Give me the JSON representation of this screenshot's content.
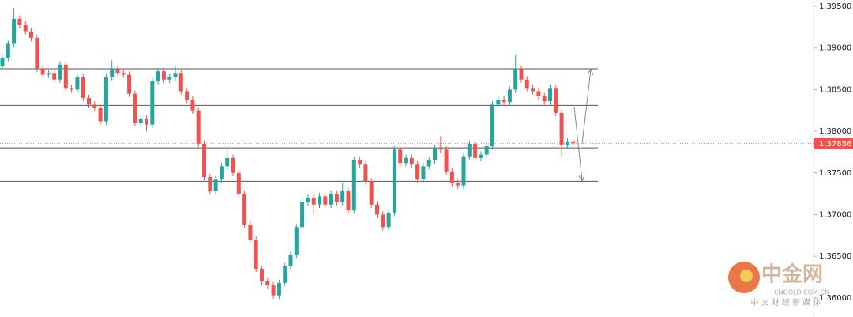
{
  "chart_data": {
    "type": "candlestick",
    "up_color": "#26a69a",
    "down_color": "#ef5350",
    "ylim": [
      1.35771,
      1.39576
    ],
    "yticks": [
      {
        "value": 1.395,
        "label": "1.39500"
      },
      {
        "value": 1.39,
        "label": "1.39000"
      },
      {
        "value": 1.385,
        "label": "1.38500"
      },
      {
        "value": 1.38,
        "label": "1.38000"
      },
      {
        "value": 1.375,
        "label": "1.37500"
      },
      {
        "value": 1.37,
        "label": "1.37000"
      },
      {
        "value": 1.365,
        "label": "1.36500"
      },
      {
        "value": 1.36,
        "label": "1.36000"
      }
    ],
    "levels": [
      1.3875,
      1.3831,
      1.378,
      1.374
    ],
    "last_price": 1.37856,
    "open": [
      1.3878,
      1.3888,
      1.3905,
      1.3935,
      1.3928,
      1.392,
      1.3912,
      1.3875,
      1.3868,
      1.387,
      1.3862,
      1.388,
      1.3852,
      1.385,
      1.3865,
      1.384,
      1.3832,
      1.3828,
      1.3812,
      1.3865,
      1.3875,
      1.387,
      1.3868,
      1.3845,
      1.381,
      1.3815,
      1.3808,
      1.386,
      1.3872,
      1.3862,
      1.3865,
      1.387,
      1.3848,
      1.3838,
      1.3825,
      1.3785,
      1.3745,
      1.3728,
      1.3742,
      1.3758,
      1.3768,
      1.375,
      1.3725,
      1.3688,
      1.367,
      1.3635,
      1.362,
      1.3615,
      1.3603,
      1.3618,
      1.3638,
      1.3652,
      1.3685,
      1.3715,
      1.372,
      1.3712,
      1.3722,
      1.3712,
      1.3725,
      1.3715,
      1.3728,
      1.3705,
      1.3765,
      1.376,
      1.374,
      1.3712,
      1.37,
      1.3685,
      1.3702,
      1.3778,
      1.3762,
      1.3768,
      1.376,
      1.3742,
      1.3758,
      1.3765,
      1.378,
      1.3778,
      1.3752,
      1.3738,
      1.3735,
      1.377,
      1.3785,
      1.3768,
      1.3772,
      1.3782,
      1.3832,
      1.3838,
      1.3835,
      1.385,
      1.3875,
      1.3862,
      1.3852,
      1.3848,
      1.3842,
      1.3836,
      1.3852,
      1.3822,
      1.3783,
      1.3788
    ],
    "high": [
      1.3892,
      1.3909,
      1.3948,
      1.3939,
      1.3932,
      1.3924,
      1.3916,
      1.3879,
      1.3874,
      1.3874,
      1.3884,
      1.3884,
      1.3856,
      1.3869,
      1.3869,
      1.3844,
      1.3836,
      1.3832,
      1.3869,
      1.3885,
      1.3879,
      1.3874,
      1.3872,
      1.3849,
      1.3819,
      1.3819,
      1.3864,
      1.3876,
      1.3876,
      1.3869,
      1.3878,
      1.3874,
      1.3852,
      1.3842,
      1.3829,
      1.3789,
      1.3749,
      1.3746,
      1.3762,
      1.378,
      1.3772,
      1.3754,
      1.3729,
      1.3692,
      1.3674,
      1.3639,
      1.3624,
      1.3619,
      1.3622,
      1.3642,
      1.3656,
      1.3689,
      1.3719,
      1.3724,
      1.3724,
      1.3726,
      1.3726,
      1.3729,
      1.3729,
      1.3738,
      1.3732,
      1.3769,
      1.3769,
      1.3764,
      1.3744,
      1.3716,
      1.3704,
      1.3706,
      1.3782,
      1.3782,
      1.3772,
      1.3772,
      1.3764,
      1.3762,
      1.3769,
      1.3784,
      1.3794,
      1.3782,
      1.3756,
      1.3742,
      1.3774,
      1.3789,
      1.3789,
      1.3776,
      1.3786,
      1.3836,
      1.3842,
      1.3842,
      1.3854,
      1.3892,
      1.3879,
      1.3866,
      1.3856,
      1.3852,
      1.3846,
      1.3856,
      1.3856,
      1.3826,
      1.3792,
      1.3792
    ],
    "low": [
      1.3874,
      1.3884,
      1.3901,
      1.3924,
      1.3916,
      1.3908,
      1.3871,
      1.3864,
      1.3864,
      1.3858,
      1.3858,
      1.3848,
      1.3846,
      1.3846,
      1.3836,
      1.3828,
      1.3824,
      1.3808,
      1.3808,
      1.3861,
      1.3866,
      1.3864,
      1.3841,
      1.3806,
      1.3806,
      1.38,
      1.3804,
      1.3856,
      1.3858,
      1.3858,
      1.3861,
      1.3844,
      1.3834,
      1.3821,
      1.3781,
      1.3741,
      1.3724,
      1.3724,
      1.3738,
      1.3754,
      1.3746,
      1.3721,
      1.3684,
      1.3666,
      1.3631,
      1.3616,
      1.3611,
      1.3599,
      1.3599,
      1.3614,
      1.3634,
      1.3648,
      1.3681,
      1.3711,
      1.37,
      1.3708,
      1.3708,
      1.3708,
      1.3711,
      1.3711,
      1.3701,
      1.3701,
      1.3756,
      1.3736,
      1.3708,
      1.3696,
      1.3681,
      1.3681,
      1.3698,
      1.3758,
      1.3758,
      1.3756,
      1.3738,
      1.3738,
      1.3754,
      1.3761,
      1.3774,
      1.3748,
      1.3734,
      1.3731,
      1.3731,
      1.3766,
      1.3764,
      1.3764,
      1.3768,
      1.3778,
      1.3828,
      1.3831,
      1.3831,
      1.3846,
      1.3858,
      1.3848,
      1.3844,
      1.3838,
      1.3832,
      1.3832,
      1.3818,
      1.377,
      1.3779,
      1.3782
    ],
    "close": [
      1.3888,
      1.3905,
      1.3935,
      1.3928,
      1.392,
      1.3912,
      1.3875,
      1.3868,
      1.387,
      1.3862,
      1.388,
      1.3852,
      1.385,
      1.3865,
      1.384,
      1.3832,
      1.3828,
      1.3812,
      1.3865,
      1.3875,
      1.387,
      1.3868,
      1.3845,
      1.381,
      1.3815,
      1.3808,
      1.386,
      1.3872,
      1.3862,
      1.3865,
      1.387,
      1.3848,
      1.3838,
      1.3825,
      1.3785,
      1.3745,
      1.3728,
      1.3742,
      1.3758,
      1.3768,
      1.375,
      1.3725,
      1.3688,
      1.367,
      1.3635,
      1.362,
      1.3615,
      1.3603,
      1.3618,
      1.3638,
      1.3652,
      1.3685,
      1.3715,
      1.372,
      1.3712,
      1.3722,
      1.3712,
      1.3725,
      1.3715,
      1.3728,
      1.3705,
      1.3765,
      1.376,
      1.374,
      1.3712,
      1.37,
      1.3685,
      1.3702,
      1.3778,
      1.3762,
      1.3768,
      1.376,
      1.3742,
      1.3758,
      1.3765,
      1.378,
      1.3778,
      1.3752,
      1.3738,
      1.3735,
      1.377,
      1.3785,
      1.3768,
      1.3772,
      1.3782,
      1.3832,
      1.3838,
      1.3835,
      1.385,
      1.3875,
      1.3862,
      1.3852,
      1.3848,
      1.3842,
      1.3836,
      1.3852,
      1.3822,
      1.3783,
      1.3788,
      1.37856
    ]
  },
  "watermark": {
    "name": "中金网",
    "domain": "CNGOLD.COM.CN",
    "tagline": "中 文 财 经 新 媒 体"
  }
}
